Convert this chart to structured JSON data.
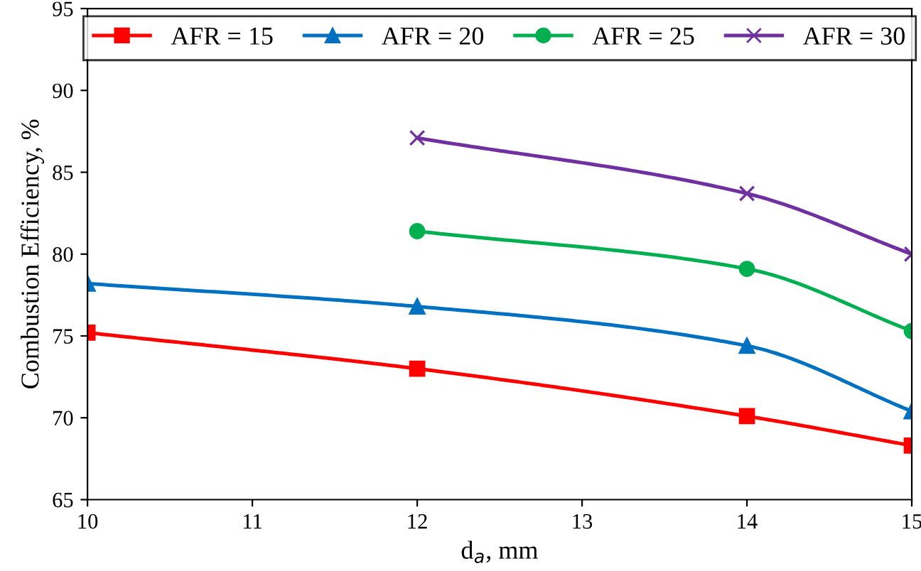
{
  "chart_data": {
    "type": "line",
    "xlabel": "d$_{a}$, mm",
    "ylabel": "Combustion Efficiency, %",
    "xlim": [
      10,
      15
    ],
    "xticks": [
      10,
      11,
      12,
      13,
      14,
      15
    ],
    "ylim": [
      65,
      95
    ],
    "yticks": [
      65,
      70,
      75,
      80,
      85,
      90,
      95
    ],
    "grid": false,
    "legend": "top",
    "series": [
      {
        "name": "AFR = 15",
        "color": "#ff0000",
        "marker": "square",
        "x": [
          10,
          12,
          14,
          15
        ],
        "values": [
          75.2,
          73.0,
          70.1,
          68.3
        ]
      },
      {
        "name": "AFR = 20",
        "color": "#0070c0",
        "marker": "triangle",
        "x": [
          10,
          12,
          14,
          15
        ],
        "values": [
          78.2,
          76.8,
          74.4,
          70.4
        ]
      },
      {
        "name": "AFR = 25",
        "color": "#00b050",
        "marker": "circle",
        "x": [
          12,
          14,
          15
        ],
        "values": [
          81.4,
          79.1,
          75.3
        ]
      },
      {
        "name": "AFR = 30",
        "color": "#7030a0",
        "marker": "cross",
        "x": [
          12,
          14,
          15
        ],
        "values": [
          87.1,
          83.7,
          80.0
        ]
      }
    ]
  }
}
